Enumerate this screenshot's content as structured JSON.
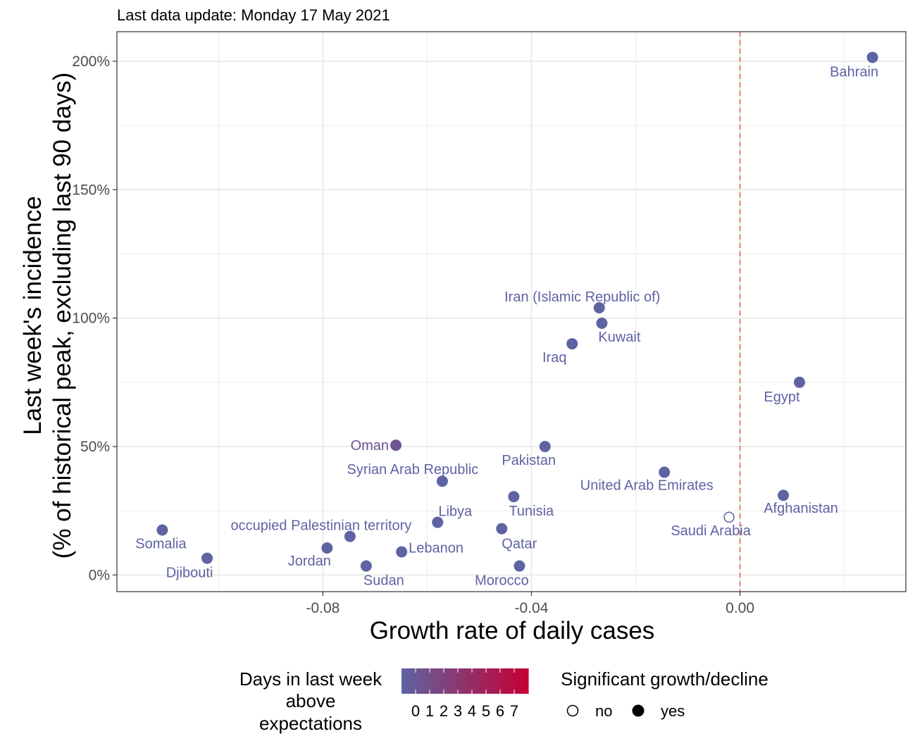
{
  "subtitle": "Last data update: Monday 17 May 2021",
  "chart_data": {
    "type": "scatter",
    "xlabel": "Growth rate of daily cases",
    "ylabel_line1": "Last week's incidence",
    "ylabel_line2": "(% of historical peak, excluding last 90 days)",
    "xlim": [
      -0.1195,
      0.0318
    ],
    "ylim": [
      -6.5,
      211.5
    ],
    "x_ticks": [
      -0.08,
      -0.04,
      0.0
    ],
    "x_tick_labels": [
      "-0.08",
      "-0.04",
      "0.00"
    ],
    "y_ticks": [
      0,
      50,
      100,
      150,
      200
    ],
    "y_tick_labels": [
      "0%",
      "50%",
      "100%",
      "150%",
      "200%"
    ],
    "reference_line_x": 0,
    "reference_line_color": "#f8766d",
    "grid": true,
    "color_low": "#5e63a3",
    "color_high": "#c40034",
    "points": [
      {
        "label": "Bahrain",
        "x": 0.0254,
        "y": 201.5,
        "days": 0,
        "significant": true
      },
      {
        "label": "Iran (Islamic Republic of)",
        "x": -0.027,
        "y": 104.0,
        "days": 0,
        "significant": true
      },
      {
        "label": "Kuwait",
        "x": -0.0265,
        "y": 98.0,
        "days": 0,
        "significant": true
      },
      {
        "label": "Iraq",
        "x": -0.0322,
        "y": 90.0,
        "days": 0,
        "significant": true
      },
      {
        "label": "Egypt",
        "x": 0.0114,
        "y": 75.0,
        "days": 0,
        "significant": true
      },
      {
        "label": "Oman",
        "x": -0.066,
        "y": 50.5,
        "days": 1,
        "significant": true
      },
      {
        "label": "Pakistan",
        "x": -0.0374,
        "y": 50.0,
        "days": 0,
        "significant": true
      },
      {
        "label": "United Arab Emirates",
        "x": -0.0145,
        "y": 40.0,
        "days": 0,
        "significant": true
      },
      {
        "label": "Syrian Arab Republic",
        "x": -0.0571,
        "y": 36.5,
        "days": 0,
        "significant": true
      },
      {
        "label": "Afghanistan",
        "x": 0.0083,
        "y": 31.0,
        "days": 0,
        "significant": true
      },
      {
        "label": "Tunisia",
        "x": -0.0434,
        "y": 30.5,
        "days": 0,
        "significant": true
      },
      {
        "label": "Saudi Arabia",
        "x": -0.0021,
        "y": 22.5,
        "days": 0,
        "significant": false
      },
      {
        "label": "Libya",
        "x": -0.058,
        "y": 20.5,
        "days": 0,
        "significant": true
      },
      {
        "label": "Qatar",
        "x": -0.0457,
        "y": 18.0,
        "days": 0,
        "significant": true
      },
      {
        "label": "Somalia",
        "x": -0.1108,
        "y": 17.5,
        "days": 0,
        "significant": true
      },
      {
        "label": "occupied Palestinian territory",
        "x": -0.0748,
        "y": 15.0,
        "days": 0,
        "significant": true
      },
      {
        "label": "Jordan",
        "x": -0.0792,
        "y": 10.5,
        "days": 0,
        "significant": true
      },
      {
        "label": "Lebanon",
        "x": -0.0649,
        "y": 9.0,
        "days": 0,
        "significant": true
      },
      {
        "label": "Djibouti",
        "x": -0.1022,
        "y": 6.5,
        "days": 0,
        "significant": true
      },
      {
        "label": "Sudan",
        "x": -0.0717,
        "y": 3.5,
        "days": 0,
        "significant": true
      },
      {
        "label": "Morocco",
        "x": -0.0423,
        "y": 3.5,
        "days": 0,
        "significant": true
      }
    ]
  },
  "legend": {
    "color_title_lines": [
      "Days in last week",
      "above",
      "expectations"
    ],
    "color_labels": [
      "0",
      "1",
      "2",
      "3",
      "4",
      "5",
      "6",
      "7"
    ],
    "shape_title": "Significant growth/decline",
    "shape_labels": [
      "no",
      "yes"
    ]
  }
}
